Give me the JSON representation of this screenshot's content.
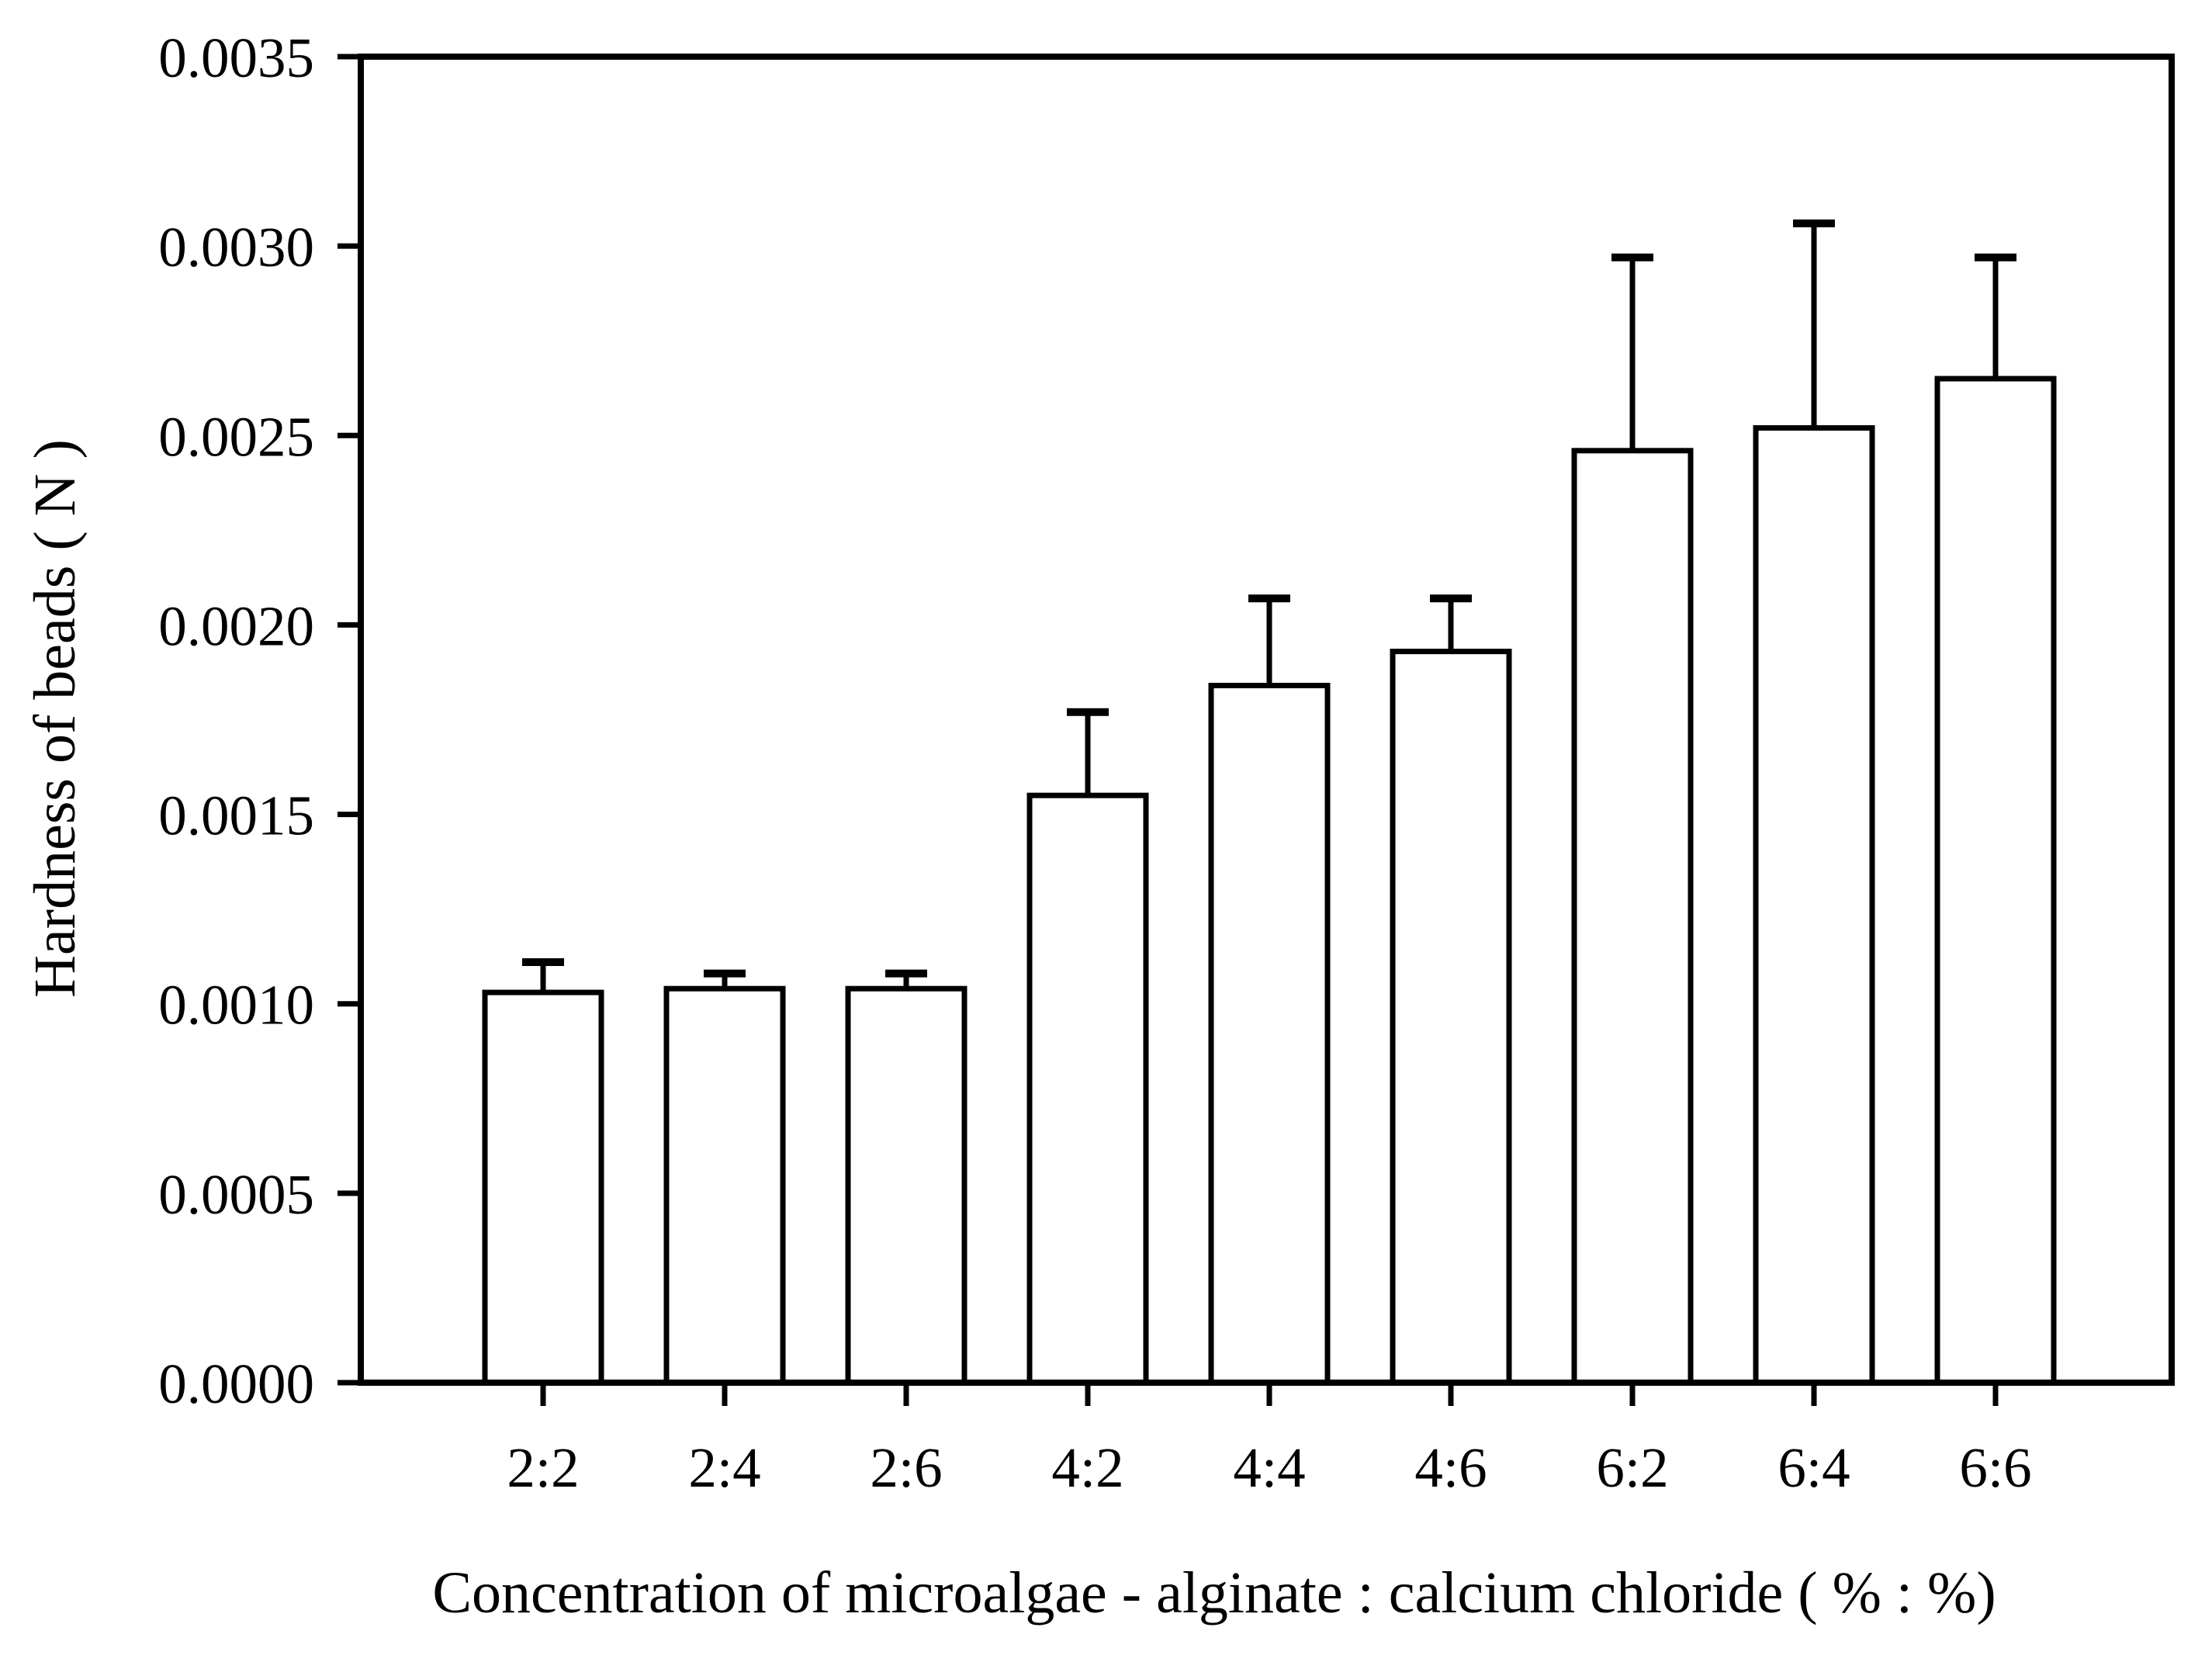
{
  "figure": {
    "background": "#ffffff",
    "ink_color": "#000000"
  },
  "chart_data": {
    "type": "bar",
    "title": "",
    "xlabel": "Concentration of microalgae - alginate : calcium chloride ( % : %)",
    "ylabel": "Hardness of beads ( N )",
    "categories": [
      "2:2",
      "2:4",
      "2:6",
      "4:2",
      "4:4",
      "4:6",
      "6:2",
      "6:4",
      "6:6"
    ],
    "values": [
      0.00103,
      0.00104,
      0.00104,
      0.00155,
      0.00184,
      0.00193,
      0.00246,
      0.00252,
      0.00265
    ],
    "errors_plus": [
      8e-05,
      4e-05,
      4e-05,
      0.00022,
      0.00023,
      0.00014,
      0.00051,
      0.00054,
      0.00032
    ],
    "ylim": [
      0,
      0.0035
    ],
    "ytick_step": 0.0005,
    "ytick_labels": [
      "0.0000",
      "0.0005",
      "0.0010",
      "0.0015",
      "0.0020",
      "0.0025",
      "0.0030",
      "0.0035"
    ],
    "bar_fill": "#ffffff",
    "bar_stroke": "#000000",
    "grid": false,
    "legend_position": "none",
    "error_bar_direction": "up"
  }
}
